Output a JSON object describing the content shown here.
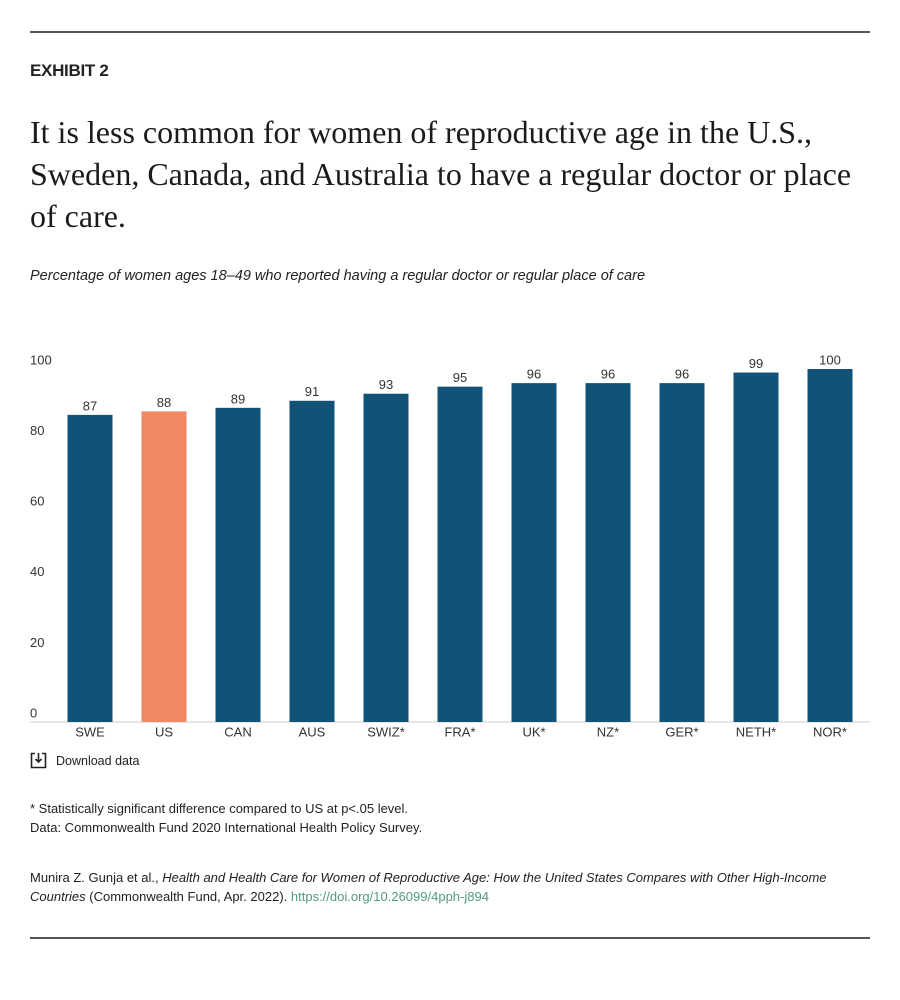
{
  "chart_data": {
    "type": "bar",
    "exhibit": "EXHIBIT 2",
    "title": "It is less common for women of reproductive age in the U.S., Sweden, Canada, and Australia to have a regular doctor or place of care.",
    "subtitle": "Percentage of women ages 18–49 who reported having a regular doctor or regular place of care",
    "categories": [
      "SWE",
      "US",
      "CAN",
      "AUS",
      "SWIZ*",
      "FRA*",
      "UK*",
      "NZ*",
      "GER*",
      "NETH*",
      "NOR*"
    ],
    "values": [
      87,
      88,
      89,
      91,
      93,
      95,
      96,
      96,
      96,
      99,
      100
    ],
    "colors": [
      "#105377",
      "#f08963",
      "#105377",
      "#105377",
      "#105377",
      "#105377",
      "#105377",
      "#105377",
      "#105377",
      "#105377",
      "#105377"
    ],
    "ylim": [
      0,
      100
    ],
    "yticks": [
      0,
      20,
      40,
      60,
      80,
      100
    ],
    "grid": false,
    "download": "Download data",
    "notes": [
      "* Statistically significant difference compared to US at p<.05 level.",
      "Data: Commonwealth Fund 2020 International Health Policy Survey."
    ],
    "citation": {
      "authors": "Munira Z. Gunja et al.,",
      "work": "Health and Health Care for Women of Reproductive Age: How the United States Compares with Other High-Income Countries",
      "source": "(Commonwealth Fund, Apr. 2022).",
      "link": "https://doi.org/10.26099/4pph-j894"
    }
  }
}
